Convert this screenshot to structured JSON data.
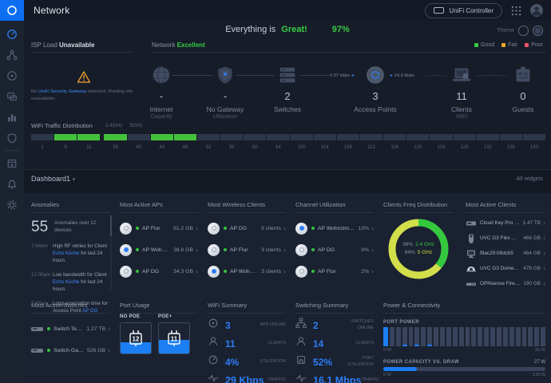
{
  "colors": {
    "accent_blue": "#2e7ef7",
    "link_blue": "#3f8cff",
    "good_green": "#36cc43",
    "fair_orange": "#f5a623",
    "poor_red": "#f2556b",
    "lime": "#d2de4a",
    "warning": "#f0a231"
  },
  "topbar": {
    "title": "Network",
    "controller_button": "UniFi Controller"
  },
  "hero": {
    "prefix": "Everything is",
    "status": "Great!",
    "score": "97%",
    "theme_label": "Theme"
  },
  "overview": {
    "isp": {
      "label": "ISP Load ",
      "status": "Unavailable",
      "warn_prefix": "No ",
      "warn_link": "UniFi Security Gateway",
      "warn_suffix": " detected. Routing info unavailable."
    },
    "network": {
      "label": "Network ",
      "status": "Excellent"
    },
    "legend": [
      {
        "label": "Good",
        "color": "#36cc43"
      },
      {
        "label": "Fair",
        "color": "#f5a623"
      },
      {
        "label": "Poor",
        "color": "#f2556b"
      }
    ],
    "stats": [
      {
        "value": "-",
        "label": "Internet",
        "sublabel": "Capacity"
      },
      {
        "value": "-",
        "label": "No Gateway",
        "sublabel": "Utilization"
      },
      {
        "value": "2",
        "label": "Switches",
        "sublabel": ""
      },
      {
        "value": "3",
        "label": "Access Points",
        "sublabel": ""
      },
      {
        "value": "11",
        "label": "Clients",
        "sublabel": "WiFi"
      },
      {
        "value": "0",
        "label": "Guests",
        "sublabel": ""
      }
    ],
    "tx_rate": "7.07 kbps",
    "rx_rate": "24.9 kbps"
  },
  "wifi_traffic": {
    "title": "WiFi Traffic Distribution",
    "band_24": "2.4GHz",
    "band_5": "5GHz"
  },
  "dashboard_bar": {
    "selector": "Dashboard1",
    "right_link": "All widgets"
  },
  "widgets": {
    "anomalies": {
      "title": "Anomalies",
      "count": "55",
      "summary": "Anomalies over 12 devices",
      "items": [
        {
          "time": "7:48am",
          "prefix": "High RF retries for Client ",
          "link": "Echo Küche",
          "suffix": " for last 24 hours"
        },
        {
          "time": "12:00am",
          "prefix": "Low bandwidth for Client ",
          "link": "Echo Küche",
          "suffix": " for last 24 hours"
        },
        {
          "time": "7:48am",
          "prefix": "Long association time for Access Point ",
          "link": "AP DG",
          "suffix": ""
        }
      ]
    },
    "most_active_aps": {
      "title": "Most Active APs",
      "rows": [
        {
          "name": "AP Flur",
          "value": "51.2 GB"
        },
        {
          "name": "AP Wohnzimmer",
          "value": "38.6 GB"
        },
        {
          "name": "AP DG",
          "value": "34.3 GB"
        }
      ]
    },
    "most_wireless_clients": {
      "title": "Most Wireless Clients",
      "rows": [
        {
          "name": "AP DG",
          "value": "5 clients"
        },
        {
          "name": "AP Flur",
          "value": "3 clients"
        },
        {
          "name": "AP Wohnzimme...",
          "value": "3 clients"
        }
      ]
    },
    "channel_utilization": {
      "title": "Channel Utilization",
      "rows": [
        {
          "name": "AP Wohnzimmer",
          "value": "13%"
        },
        {
          "name": "AP DG",
          "value": "9%"
        },
        {
          "name": "AP Flur",
          "value": "2%"
        }
      ]
    },
    "clients_freq": {
      "title": "Clients Freq Distribution",
      "center": [
        {
          "pct": "36%",
          "label": "2.4 GHz"
        },
        {
          "pct": "64%",
          "label": "5 GHz"
        }
      ]
    },
    "most_active_clients": {
      "title": "Most Active Clients",
      "rows": [
        {
          "name": "Cloud Key Pro Gen2",
          "value": "1.47 TB",
          "icon": "console"
        },
        {
          "name": "UVC G3 Flex Haust...",
          "value": "466 GB",
          "icon": "camera"
        },
        {
          "name": "f8ac29:08dcb5",
          "value": "464 GB",
          "icon": "desktop"
        },
        {
          "name": "UVC G3 Dome Eint...",
          "value": "478 GB",
          "icon": "dome-camera"
        },
        {
          "name": "OPNsense Firewall",
          "value": "190 GB",
          "icon": "firewall"
        }
      ]
    },
    "most_active_switches": {
      "title": "Most Active Switches",
      "rows": [
        {
          "name": "Switch Technik...",
          "value": "1.27 TB"
        },
        {
          "name": "Switch Garage",
          "value": "526 GB"
        }
      ]
    },
    "port_usage": {
      "title": "Port Usage",
      "groups": [
        {
          "label": "NO POE",
          "count": "12",
          "fill_pct": 36
        },
        {
          "label": "POE+",
          "count": "11",
          "fill_pct": 44
        }
      ]
    },
    "wifi_summary": {
      "title": "WiFi Summary",
      "rows": [
        {
          "value": "3",
          "label": "APS ONLINE"
        },
        {
          "value": "11",
          "label": "CLIENTS"
        },
        {
          "value": "4%",
          "label": "UTILIZATION"
        },
        {
          "value": "29 Kbps",
          "label": "TRAFFIC"
        }
      ]
    },
    "switching_summary": {
      "title": "Switching Summary",
      "rows": [
        {
          "value": "2",
          "label": "SWITCHES ONLINE"
        },
        {
          "value": "14",
          "label": "CLIENTS"
        },
        {
          "value": "52%",
          "label": "PORT UTILIZATION"
        },
        {
          "value": "16.1 Mbps",
          "label": "TRAFFIC"
        }
      ]
    },
    "power": {
      "title": "Power & Connectivity",
      "port_power_label": "PORT POWER",
      "pp_min": "0 W",
      "pp_max": "30 W",
      "capacity_label": "POWER CAPACITY VS. DRAW",
      "capacity_value": "27 W",
      "cap_min": "0 W",
      "cap_max": "130 W"
    }
  },
  "chart_data": [
    {
      "id": "wifi_traffic",
      "type": "heatmap",
      "title": "WiFi Traffic Distribution",
      "categories": [
        1,
        6,
        11,
        36,
        40,
        44,
        48,
        52,
        56,
        60,
        64,
        100,
        104,
        108,
        112,
        116,
        120,
        124,
        128,
        132,
        136,
        140
      ],
      "active_channels": [
        6,
        11,
        36,
        44,
        48
      ],
      "band_split_index": 3,
      "active_color": "#44c13b",
      "inactive_color": "#2d374b"
    },
    {
      "id": "clients_freq",
      "type": "pie",
      "title": "Clients Freq Distribution",
      "slices": [
        {
          "label": "2.4 GHz",
          "value": 36,
          "color": "#35c83f"
        },
        {
          "label": "5 GHz",
          "value": 64,
          "color": "#d2de4a"
        }
      ],
      "legend_position": "center"
    },
    {
      "id": "port_power",
      "type": "bar",
      "title": "PORT POWER",
      "ylabel": "W",
      "ylim": [
        0,
        30
      ],
      "values": [
        30,
        0,
        0,
        2,
        0,
        2.5,
        0,
        2,
        0,
        0,
        0,
        0,
        0,
        0,
        0,
        0,
        0,
        0,
        0,
        0,
        0,
        0,
        0,
        0,
        0,
        0
      ],
      "bar_color": "#1b7ef2",
      "track_color": "#39445c"
    },
    {
      "id": "power_capacity",
      "type": "bar",
      "title": "POWER CAPACITY VS. DRAW",
      "value": 27,
      "max": 130,
      "unit": "W",
      "bar_color": "#1b7ef2",
      "track_color": "#39445c"
    }
  ]
}
